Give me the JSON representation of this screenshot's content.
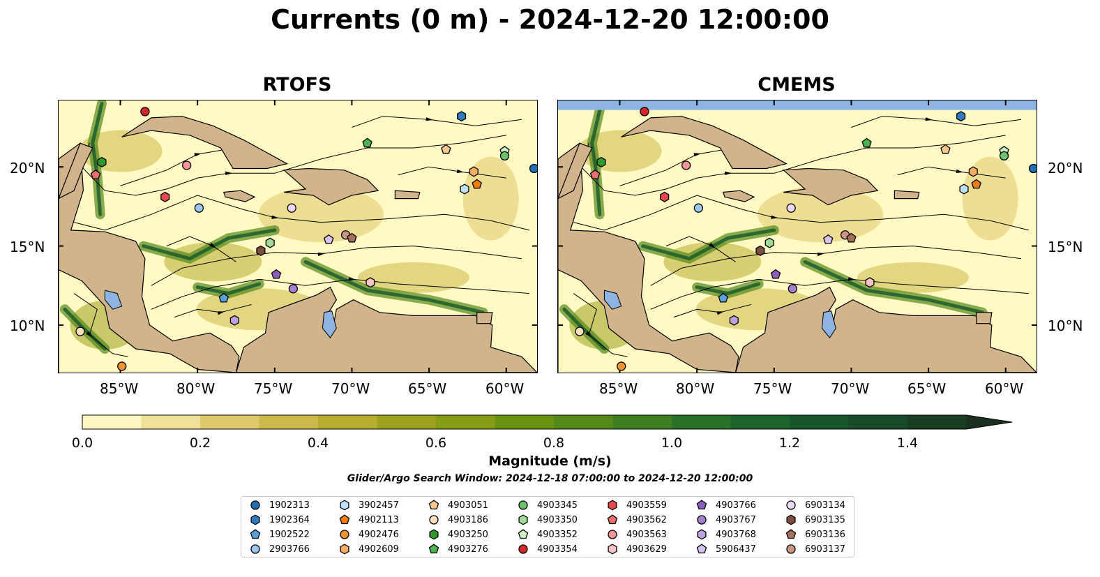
{
  "title": "Currents (0 m) - 2024-12-20 12:00:00",
  "panels": [
    {
      "title": "RTOFS"
    },
    {
      "title": "CMEMS"
    }
  ],
  "map": {
    "lon_range": [
      -89,
      -58
    ],
    "lat_range": [
      7,
      24.2
    ],
    "lon_ticks": [
      "85°W",
      "80°W",
      "75°W",
      "70°W",
      "65°W",
      "60°W"
    ],
    "lat_ticks": [
      "20°N",
      "15°N",
      "10°N"
    ],
    "land_color": "#d2b48c",
    "ocean_low_color": "#fff9c4",
    "ocean_high_color": "#1a5e2a",
    "lake_color": "#8db4e2"
  },
  "colorbar": {
    "label": "Magnitude (m/s)",
    "range": [
      0,
      1.6
    ],
    "extend": "max",
    "ticks": [
      "0.0",
      "0.2",
      "0.4",
      "0.6",
      "0.8",
      "1.0",
      "1.2",
      "1.4"
    ],
    "colors": [
      "#fdf7c3",
      "#efe09a",
      "#dfc96b",
      "#ccb94a",
      "#b7ad2f",
      "#9ea31f",
      "#849c16",
      "#6b9312",
      "#54891a",
      "#3f7f22",
      "#2a7129",
      "#1c642c",
      "#17572b",
      "#174a28",
      "#183d23",
      "#1a2f1d"
    ]
  },
  "search_window": "Glider/Argo Search Window: 2024-12-18 07:00:00 to 2024-12-20 12:00:00",
  "legend": [
    {
      "id": "1902313",
      "shape": "circle",
      "color": "#1f6fb4"
    },
    {
      "id": "1902364",
      "shape": "hexagon",
      "color": "#2f7bc0"
    },
    {
      "id": "1902522",
      "shape": "pentagon",
      "color": "#5aa0dc"
    },
    {
      "id": "2903766",
      "shape": "circle",
      "color": "#9cc7ee"
    },
    {
      "id": "3902457",
      "shape": "hexagon",
      "color": "#bfe0f7"
    },
    {
      "id": "4902113",
      "shape": "pentagon",
      "color": "#f07d0c"
    },
    {
      "id": "4902476",
      "shape": "circle",
      "color": "#f5902e"
    },
    {
      "id": "4902609",
      "shape": "hexagon",
      "color": "#f8ad63"
    },
    {
      "id": "4903051",
      "shape": "pentagon",
      "color": "#fbc88f"
    },
    {
      "id": "4903186",
      "shape": "circle",
      "color": "#fde0bd"
    },
    {
      "id": "4903250",
      "shape": "hexagon",
      "color": "#2e9a2e"
    },
    {
      "id": "4903276",
      "shape": "pentagon",
      "color": "#4db34d"
    },
    {
      "id": "4903345",
      "shape": "circle",
      "color": "#6cc06c"
    },
    {
      "id": "4903350",
      "shape": "hexagon",
      "color": "#a3dc9a"
    },
    {
      "id": "4903352",
      "shape": "pentagon",
      "color": "#cdf0c5"
    },
    {
      "id": "4903354",
      "shape": "circle",
      "color": "#d62728"
    },
    {
      "id": "4903559",
      "shape": "hexagon",
      "color": "#e24a4a"
    },
    {
      "id": "4903562",
      "shape": "pentagon",
      "color": "#ec6f6f"
    },
    {
      "id": "4903563",
      "shape": "circle",
      "color": "#f29696"
    },
    {
      "id": "4903629",
      "shape": "hexagon",
      "color": "#f9c4c4"
    },
    {
      "id": "4903766",
      "shape": "pentagon",
      "color": "#8d5fc0"
    },
    {
      "id": "4903767",
      "shape": "circle",
      "color": "#a57fd0"
    },
    {
      "id": "4903768",
      "shape": "hexagon",
      "color": "#bea2df"
    },
    {
      "id": "5906437",
      "shape": "pentagon",
      "color": "#d5c4ee"
    },
    {
      "id": "6903134",
      "shape": "circle",
      "color": "#efd9f7"
    },
    {
      "id": "6903135",
      "shape": "hexagon",
      "color": "#7b4f3f"
    },
    {
      "id": "6903136",
      "shape": "pentagon",
      "color": "#a5705c"
    },
    {
      "id": "6903137",
      "shape": "circle",
      "color": "#c99684"
    }
  ],
  "platforms": [
    {
      "id": "4903354",
      "lon": -83.4,
      "lat": 23.5
    },
    {
      "id": "1902364",
      "lon": -62.9,
      "lat": 23.2
    },
    {
      "id": "4903276",
      "lon": -69.0,
      "lat": 21.5
    },
    {
      "id": "4903051",
      "lon": -63.9,
      "lat": 21.1
    },
    {
      "id": "4903352",
      "lon": -60.1,
      "lat": 21.0
    },
    {
      "id": "4903345",
      "lon": -60.1,
      "lat": 20.7
    },
    {
      "id": "4903250",
      "lon": -86.2,
      "lat": 20.3
    },
    {
      "id": "4903563",
      "lon": -80.7,
      "lat": 20.1
    },
    {
      "id": "1902313",
      "lon": -58.2,
      "lat": 19.9
    },
    {
      "id": "4902609",
      "lon": -62.1,
      "lat": 19.7
    },
    {
      "id": "4903562",
      "lon": -86.6,
      "lat": 19.5
    },
    {
      "id": "4902113",
      "lon": -61.9,
      "lat": 18.9
    },
    {
      "id": "3902457",
      "lon": -62.7,
      "lat": 18.6
    },
    {
      "id": "4903559",
      "lon": -82.1,
      "lat": 18.1
    },
    {
      "id": "2903766",
      "lon": -79.9,
      "lat": 17.4
    },
    {
      "id": "6903134",
      "lon": -73.9,
      "lat": 17.4
    },
    {
      "id": "5906437",
      "lon": -71.5,
      "lat": 15.4
    },
    {
      "id": "6903137",
      "lon": -70.4,
      "lat": 15.7
    },
    {
      "id": "6903136",
      "lon": -70.0,
      "lat": 15.5
    },
    {
      "id": "4903350",
      "lon": -75.3,
      "lat": 15.2
    },
    {
      "id": "6903135",
      "lon": -75.9,
      "lat": 14.7
    },
    {
      "id": "4903766",
      "lon": -74.9,
      "lat": 13.2
    },
    {
      "id": "4903629",
      "lon": -68.8,
      "lat": 12.7
    },
    {
      "id": "4903767",
      "lon": -73.8,
      "lat": 12.3
    },
    {
      "id": "1902522",
      "lon": -78.3,
      "lat": 11.7
    },
    {
      "id": "4903768",
      "lon": -77.6,
      "lat": 10.3
    },
    {
      "id": "4903186",
      "lon": -87.6,
      "lat": 9.6
    },
    {
      "id": "4902476",
      "lon": -84.9,
      "lat": 7.4
    }
  ]
}
